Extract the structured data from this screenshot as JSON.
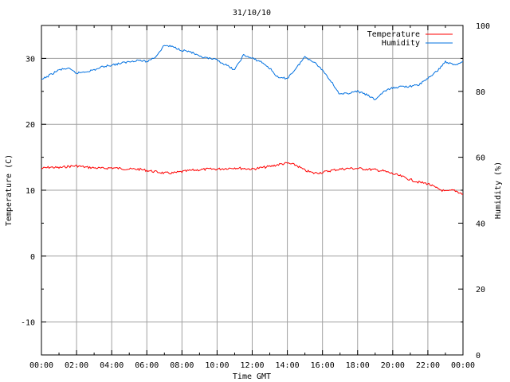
{
  "chart_data": {
    "type": "line",
    "title": "31/10/10",
    "xlabel": "Time GMT",
    "ylabel": "Temperature (C)",
    "y2label": "Humidity (%)",
    "xlim": [
      0,
      24
    ],
    "ylim": [
      -15,
      35
    ],
    "y2lim": [
      0,
      100
    ],
    "grid": true,
    "legend_position": "top-right",
    "x_ticks": [
      0,
      2,
      4,
      6,
      8,
      10,
      12,
      14,
      16,
      18,
      20,
      22,
      24
    ],
    "x_tick_labels": [
      "00:00",
      "02:00",
      "04:00",
      "06:00",
      "08:00",
      "10:00",
      "12:00",
      "14:00",
      "16:00",
      "18:00",
      "20:00",
      "22:00",
      "00:00"
    ],
    "y_ticks": [
      -10,
      0,
      10,
      20,
      30
    ],
    "y_tick_labels": [
      "-10",
      "0",
      "10",
      "20",
      "30"
    ],
    "y2_ticks": [
      0,
      20,
      40,
      60,
      80,
      100
    ],
    "y2_tick_labels": [
      "0",
      "20",
      "40",
      "60",
      "80",
      "100"
    ],
    "x_hours": [
      0,
      0.5,
      1,
      1.5,
      2,
      2.5,
      3,
      3.5,
      4,
      4.5,
      5,
      5.5,
      6,
      6.5,
      7,
      7.5,
      8,
      8.5,
      9,
      9.5,
      10,
      10.5,
      11,
      11.5,
      12,
      12.5,
      13,
      13.5,
      14,
      14.5,
      15,
      15.5,
      16,
      16.5,
      17,
      17.5,
      18,
      18.5,
      19,
      19.5,
      20,
      20.5,
      21,
      21.5,
      22,
      22.5,
      23,
      23.5,
      24
    ],
    "series": [
      {
        "name": "Temperature",
        "axis": "left",
        "color": "#ff0000",
        "values": [
          13.3,
          13.5,
          13.4,
          13.6,
          13.7,
          13.5,
          13.4,
          13.3,
          13.4,
          13.3,
          13.2,
          13.2,
          13.0,
          12.8,
          12.6,
          12.6,
          12.8,
          13.0,
          13.1,
          13.2,
          13.2,
          13.3,
          13.4,
          13.3,
          13.2,
          13.4,
          13.6,
          13.9,
          14.1,
          13.8,
          13.0,
          12.6,
          12.7,
          13.0,
          13.2,
          13.3,
          13.3,
          13.2,
          13.1,
          12.9,
          12.5,
          12.1,
          11.6,
          11.2,
          11.0,
          10.3,
          9.8,
          10.0,
          9.4
        ]
      },
      {
        "name": "Humidity",
        "axis": "right",
        "color": "#0070e0",
        "values": [
          83.5,
          85,
          86.5,
          87,
          85.5,
          86,
          86.5,
          87.5,
          88,
          88.5,
          89,
          89.5,
          89,
          90.5,
          94,
          93.5,
          92.5,
          92,
          90.5,
          90,
          89.5,
          88,
          86.5,
          91,
          90,
          89,
          87,
          84,
          84,
          87,
          90.5,
          89,
          86.5,
          83,
          79,
          79.5,
          80,
          79,
          77.5,
          80,
          81,
          81.5,
          81.5,
          82,
          84,
          86,
          89,
          88,
          89
        ]
      }
    ]
  }
}
